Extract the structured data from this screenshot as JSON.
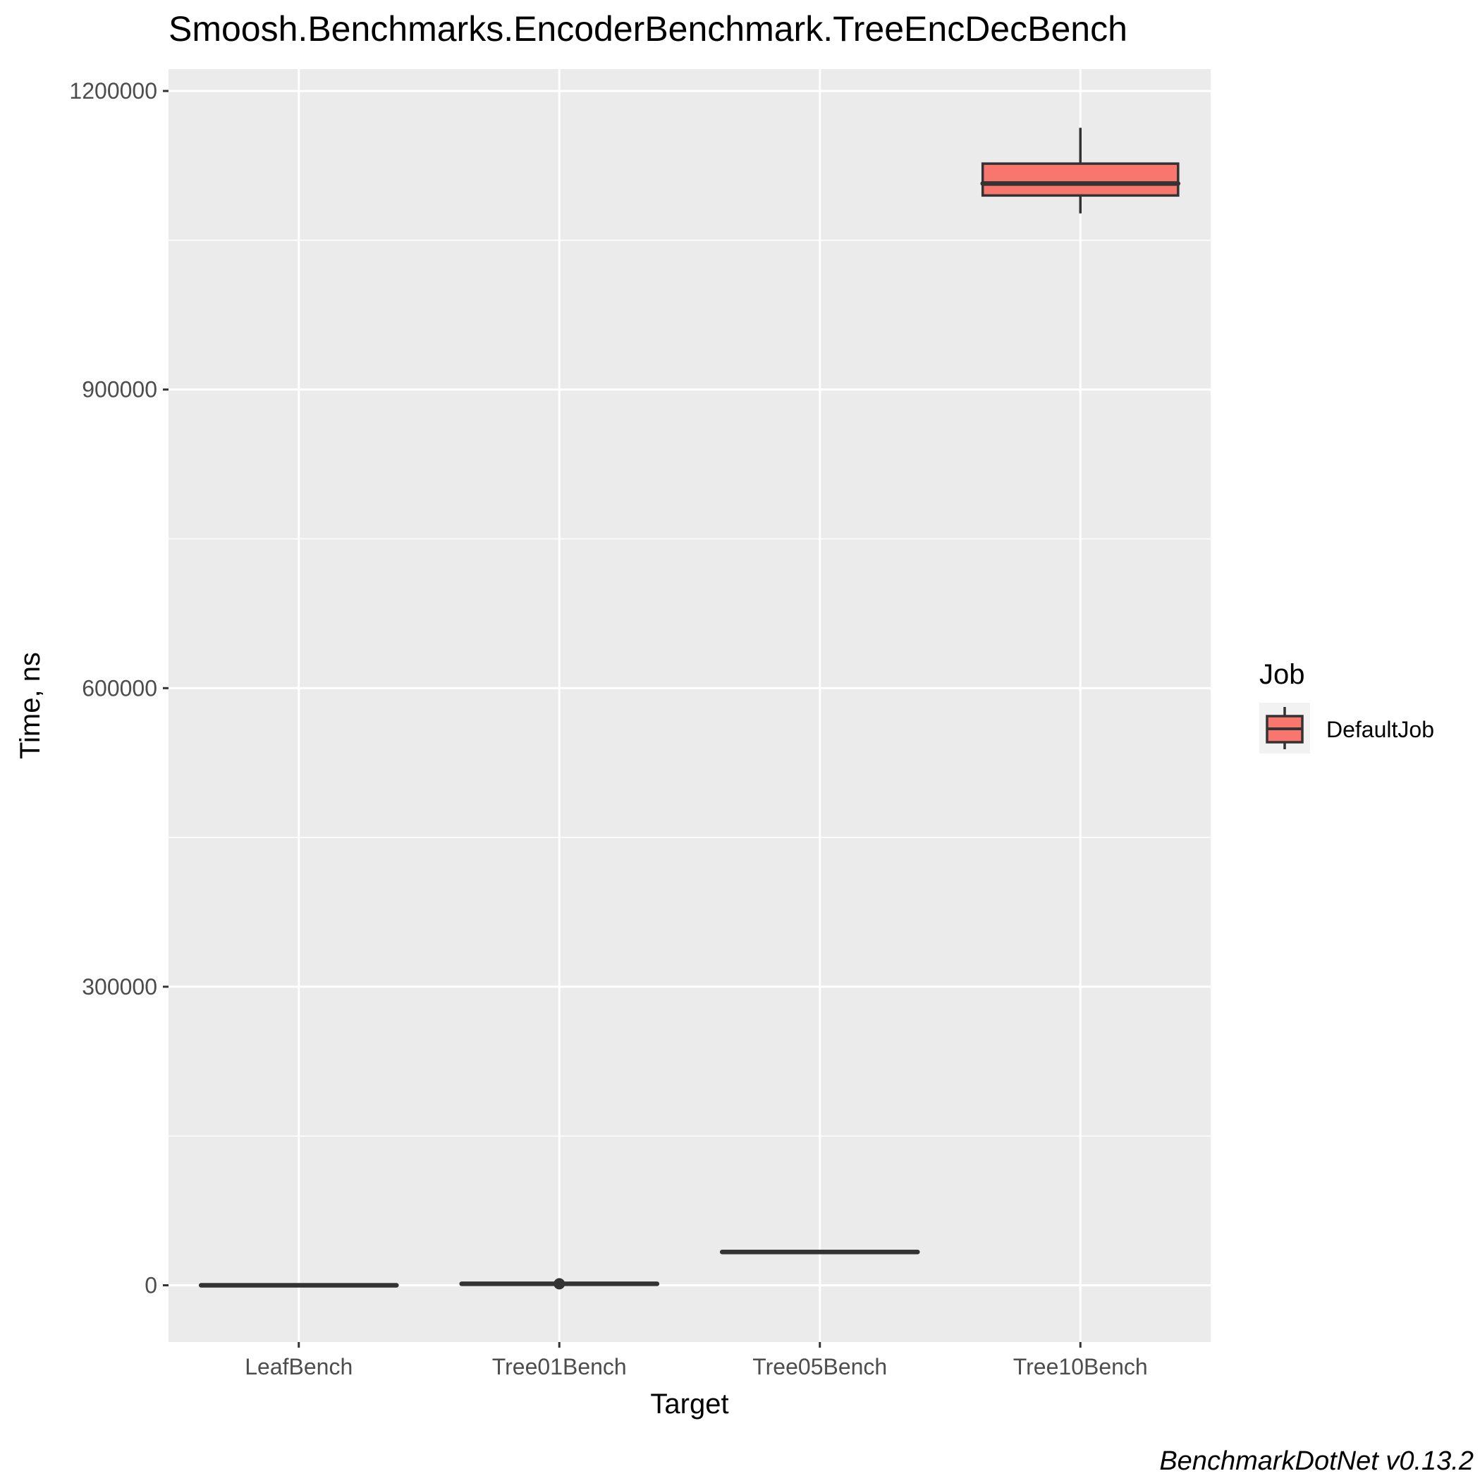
{
  "chart_data": {
    "type": "box",
    "title": "Smoosh.Benchmarks.EncoderBenchmark.TreeEncDecBench",
    "xlabel": "Target",
    "ylabel": "Time, ns",
    "categories": [
      "LeafBench",
      "Tree01Bench",
      "Tree05Bench",
      "Tree10Bench"
    ],
    "ylim": [
      -57000,
      1222000
    ],
    "yticks": [
      0,
      300000,
      600000,
      900000,
      1200000
    ],
    "ytick_labels": [
      "0",
      "300000",
      "600000",
      "900000",
      "1200000"
    ],
    "grid": true,
    "legend": {
      "title": "Job",
      "entries": [
        "DefaultJob"
      ],
      "placement": "right"
    },
    "series": [
      {
        "name": "DefaultJob",
        "color": "#F8766D",
        "boxes": [
          {
            "category": "LeafBench",
            "min": 0,
            "q1": 0,
            "median": 0,
            "q3": 0,
            "max": 0,
            "outliers": []
          },
          {
            "category": "Tree01Bench",
            "min": 1500,
            "q1": 1500,
            "median": 1500,
            "q3": 1500,
            "max": 1500,
            "outliers": [
              1500
            ]
          },
          {
            "category": "Tree05Bench",
            "min": 33500,
            "q1": 33500,
            "median": 33500,
            "q3": 33500,
            "max": 33500,
            "outliers": []
          },
          {
            "category": "Tree10Bench",
            "min": 1077000,
            "q1": 1095000,
            "median": 1107000,
            "q3": 1127000,
            "max": 1163000,
            "outliers": []
          }
        ]
      }
    ],
    "caption": "BenchmarkDotNet v0.13.2"
  }
}
